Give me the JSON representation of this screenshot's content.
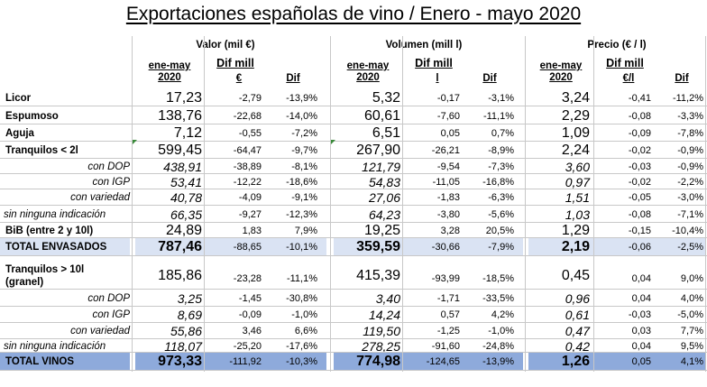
{
  "title": "Exportaciones españolas de vino / Enero - mayo 2020",
  "groups": {
    "valor": "Valor (mil €)",
    "volumen": "Volumen (mill l)",
    "precio": "Precio (€ / l)"
  },
  "subheaders": {
    "period_line1": "ene-may",
    "period_line2": "2020",
    "dif_mill": "Dif mill",
    "dif": "Dif",
    "unit_valor": "€",
    "unit_volumen": "l",
    "unit_precio": "€/l"
  },
  "rows": [
    {
      "label": "Licor",
      "v": "17,23",
      "vd": "-2,79",
      "vp": "-13,9%",
      "o": "5,32",
      "od": "-0,17",
      "op": "-3,1%",
      "p": "3,24",
      "pd": "-0,41",
      "pp": "-11,2%"
    },
    {
      "label": "Espumoso",
      "v": "138,76",
      "vd": "-22,68",
      "vp": "-14,0%",
      "o": "60,61",
      "od": "-7,60",
      "op": "-11,1%",
      "p": "2,29",
      "pd": "-0,08",
      "pp": "-3,3%"
    },
    {
      "label": "Aguja",
      "v": "7,12",
      "vd": "-0,55",
      "vp": "-7,2%",
      "o": "6,51",
      "od": "0,05",
      "op": "0,7%",
      "p": "1,09",
      "pd": "-0,09",
      "pp": "-7,8%"
    },
    {
      "label": "Tranquilos < 2l",
      "v": "599,45",
      "vd": "-64,47",
      "vp": "-9,7%",
      "o": "267,90",
      "od": "-26,21",
      "op": "-8,9%",
      "p": "2,24",
      "pd": "-0,02",
      "pp": "-0,9%"
    },
    {
      "label": "con DOP",
      "v": "438,91",
      "vd": "-38,89",
      "vp": "-8,1%",
      "o": "121,79",
      "od": "-9,54",
      "op": "-7,3%",
      "p": "3,60",
      "pd": "-0,03",
      "pp": "-0,9%"
    },
    {
      "label": "con IGP",
      "v": "53,41",
      "vd": "-12,22",
      "vp": "-18,6%",
      "o": "54,83",
      "od": "-11,05",
      "op": "-16,8%",
      "p": "0,97",
      "pd": "-0,02",
      "pp": "-2,2%"
    },
    {
      "label": "con variedad",
      "v": "40,78",
      "vd": "-4,09",
      "vp": "-9,1%",
      "o": "27,06",
      "od": "-1,83",
      "op": "-6,3%",
      "p": "1,51",
      "pd": "-0,05",
      "pp": "-3,0%"
    },
    {
      "label": "sin ninguna indicación",
      "v": "66,35",
      "vd": "-9,27",
      "vp": "-12,3%",
      "o": "64,23",
      "od": "-3,80",
      "op": "-5,6%",
      "p": "1,03",
      "pd": "-0,08",
      "pp": "-7,1%"
    },
    {
      "label": "BiB (entre 2 y 10l)",
      "v": "24,89",
      "vd": "1,83",
      "vp": "7,9%",
      "o": "19,25",
      "od": "3,28",
      "op": "20,5%",
      "p": "1,29",
      "pd": "-0,15",
      "pp": "-10,4%"
    },
    {
      "label": "TOTAL ENVASADOS",
      "v": "787,46",
      "vd": "-88,65",
      "vp": "-10,1%",
      "o": "359,59",
      "od": "-30,66",
      "op": "-7,9%",
      "p": "2,19",
      "pd": "-0,06",
      "pp": "-2,5%"
    },
    {
      "label": "Tranquilos > 10l",
      "label2": "(granel)",
      "v": "185,86",
      "vd": "-23,28",
      "vp": "-11,1%",
      "o": "415,39",
      "od": "-93,99",
      "op": "-18,5%",
      "p": "0,45",
      "pd": "0,04",
      "pp": "9,0%"
    },
    {
      "label": "con DOP",
      "v": "3,25",
      "vd": "-1,45",
      "vp": "-30,8%",
      "o": "3,40",
      "od": "-1,71",
      "op": "-33,5%",
      "p": "0,96",
      "pd": "0,04",
      "pp": "4,0%"
    },
    {
      "label": "con IGP",
      "v": "8,69",
      "vd": "-0,09",
      "vp": "-1,0%",
      "o": "14,24",
      "od": "0,57",
      "op": "4,2%",
      "p": "0,61",
      "pd": "-0,03",
      "pp": "-5,0%"
    },
    {
      "label": "con variedad",
      "v": "55,86",
      "vd": "3,46",
      "vp": "6,6%",
      "o": "119,50",
      "od": "-1,25",
      "op": "-1,0%",
      "p": "0,47",
      "pd": "0,03",
      "pp": "7,7%"
    },
    {
      "label": "sin ninguna indicación",
      "v": "118,07",
      "vd": "-25,20",
      "vp": "-17,6%",
      "o": "278,25",
      "od": "-91,60",
      "op": "-24,8%",
      "p": "0,42",
      "pd": "0,04",
      "pp": "9,5%"
    },
    {
      "label": "TOTAL VINOS",
      "v": "973,33",
      "vd": "-111,92",
      "vp": "-10,3%",
      "o": "774,98",
      "od": "-124,65",
      "op": "-13,9%",
      "p": "1,26",
      "pd": "0,05",
      "pp": "4,1%"
    }
  ]
}
